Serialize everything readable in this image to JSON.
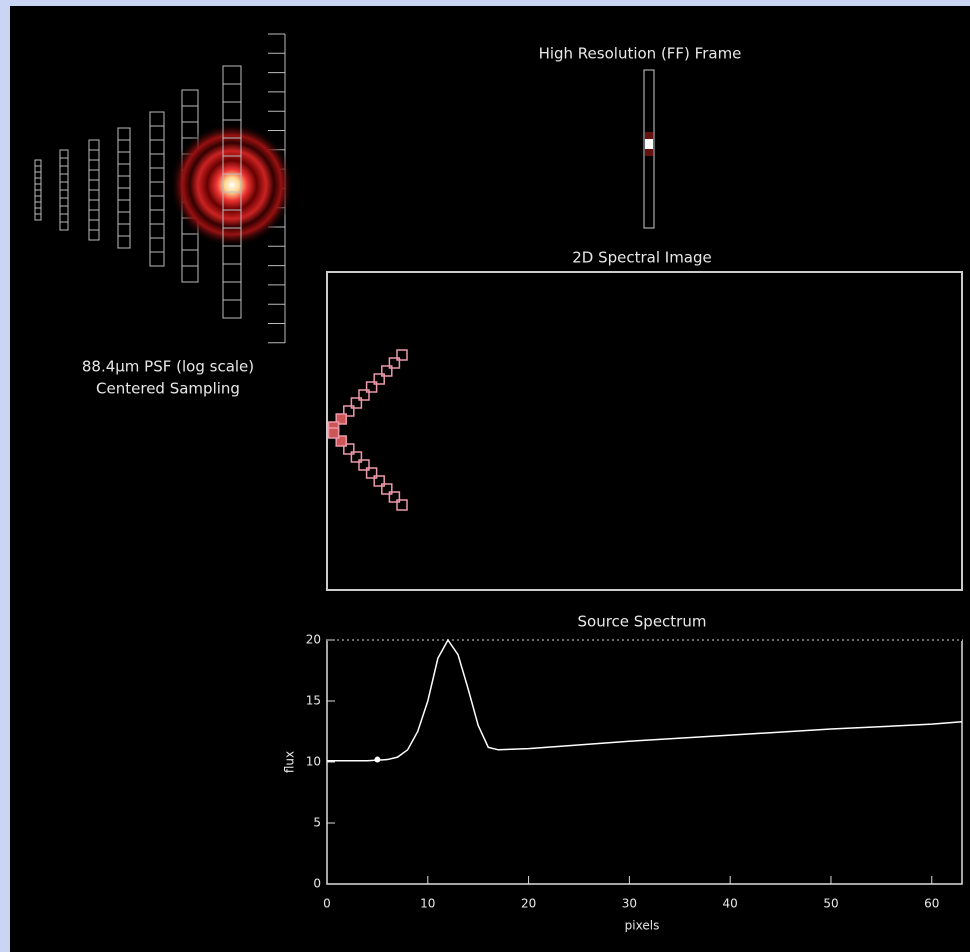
{
  "panels": {
    "psf_label": [
      "88.4μm PSF (log scale)",
      "Centered Sampling"
    ],
    "high_res_title": "High Resolution (FF) Frame",
    "spectral_title": "2D Spectral Image"
  },
  "chart_data": {
    "type": "line",
    "title": "Source Spectrum",
    "x_label": "pixels",
    "y_label": "flux",
    "x": [
      0,
      2,
      4,
      6,
      7,
      8,
      9,
      10,
      11,
      12,
      13,
      14,
      15,
      16,
      17,
      20,
      30,
      40,
      50,
      60,
      63
    ],
    "series": [
      {
        "color": "#ffffff",
        "values": [
          10.1,
          10.1,
          10.1,
          10.2,
          10.4,
          11,
          12.5,
          15,
          18.5,
          20,
          18.8,
          16,
          13,
          11.2,
          11,
          11.1,
          11.7,
          12.2,
          12.7,
          13.1,
          13.3
        ]
      }
    ],
    "marker": {
      "x": 5,
      "y": 10.2
    },
    "xlim": [
      0,
      63
    ],
    "ylim": [
      0,
      20
    ],
    "xticks": [
      0,
      10,
      20,
      30,
      40,
      50,
      60
    ],
    "yticks": [
      0,
      5,
      10,
      15,
      20
    ]
  }
}
